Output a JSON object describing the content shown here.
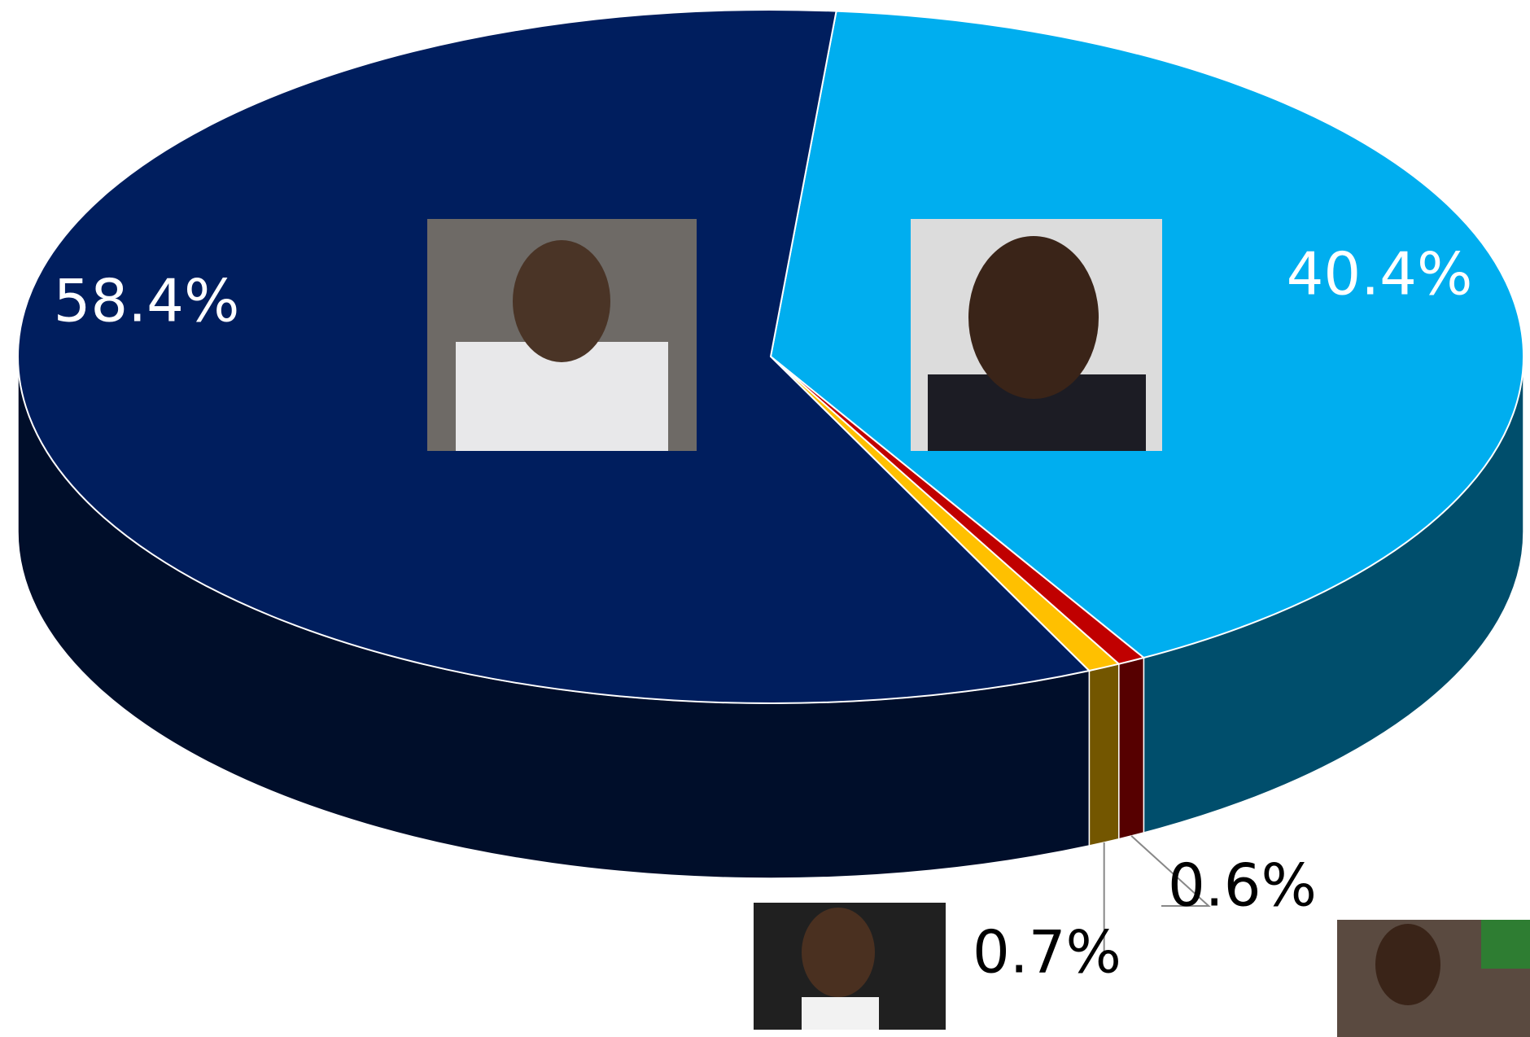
{
  "chart_data": {
    "type": "pie",
    "values": [
      40.4,
      0.6,
      0.7,
      58.4
    ],
    "value_labels": [
      "40.4%",
      "0.6%",
      "0.7%",
      "58.4%"
    ],
    "colors": [
      "#00aeef",
      "#c00000",
      "#ffc000",
      "#001e5e"
    ]
  }
}
